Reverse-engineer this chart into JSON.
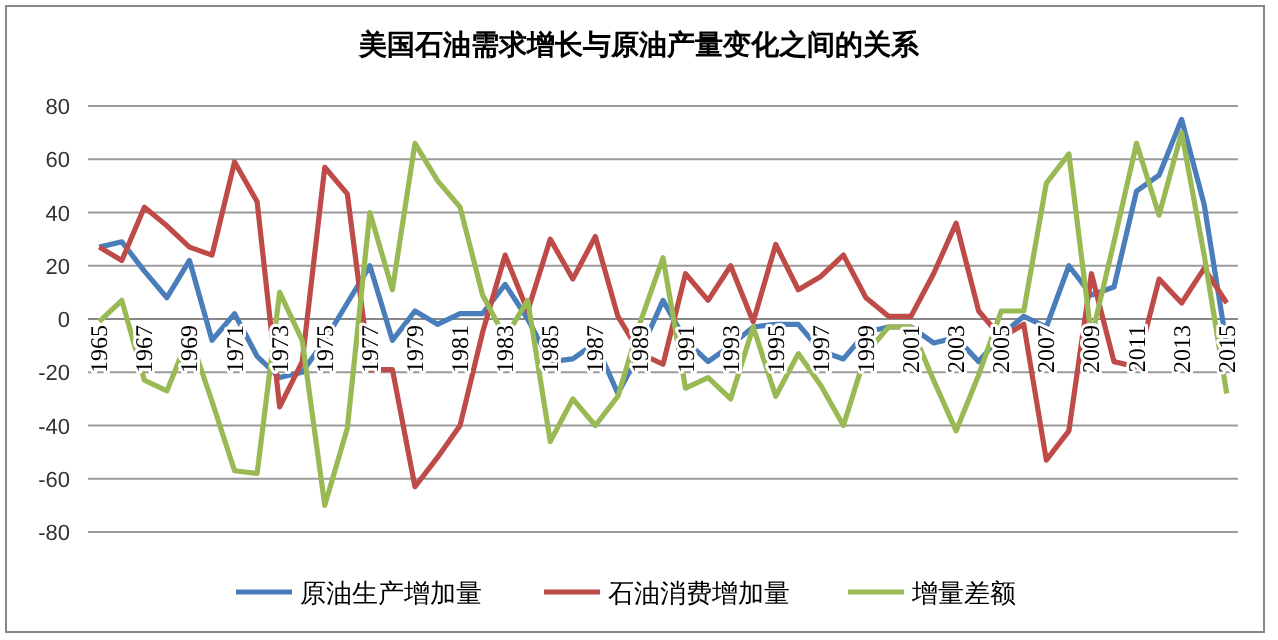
{
  "chart_data": {
    "type": "line",
    "title": "美国石油需求增长与原油产量变化之间的关系",
    "categories": [
      "1965",
      null,
      "1967",
      null,
      "1969",
      null,
      "1971",
      null,
      "1973",
      null,
      "1975",
      null,
      "1977",
      null,
      "1979",
      null,
      "1981",
      null,
      "1983",
      null,
      "1985",
      null,
      "1987",
      null,
      "1989",
      null,
      "1991",
      null,
      "1993",
      null,
      "1995",
      null,
      "1997",
      null,
      "1999",
      null,
      "2001",
      null,
      "2003",
      null,
      "2005",
      null,
      "2007",
      null,
      "2009",
      null,
      "2011",
      null,
      "2013",
      null,
      "2015"
    ],
    "series": [
      {
        "name": "原油生产增加量",
        "color": "#4a7ebb",
        "values": [
          27,
          29,
          18,
          8,
          22,
          -8,
          2,
          -14,
          -22,
          -20,
          -8,
          6,
          20,
          -8,
          3,
          -2,
          2,
          2,
          13,
          0,
          -16,
          -15,
          -9,
          -28,
          -12,
          7,
          -8,
          -16,
          -10,
          -3,
          -2,
          -2,
          -12,
          -15,
          -5,
          -3,
          -3,
          -9,
          -7,
          -16,
          -6,
          1,
          -3,
          20,
          9,
          12,
          48,
          54,
          75,
          43,
          -10
        ]
      },
      {
        "name": "石油消费增加量",
        "color": "#be4b48",
        "values": [
          27,
          22,
          42,
          35,
          27,
          24,
          59,
          44,
          -33,
          -16,
          57,
          47,
          -19,
          -19,
          -63,
          -52,
          -40,
          -5,
          24,
          3,
          30,
          15,
          31,
          1,
          -13,
          -17,
          17,
          7,
          20,
          -1,
          28,
          11,
          16,
          24,
          8,
          1,
          1,
          17,
          36,
          3,
          -7,
          -2,
          -53,
          -42,
          17,
          -16,
          -18,
          15,
          6,
          19,
          6
        ]
      },
      {
        "name": "增量差额",
        "color": "#98b954",
        "values": [
          -1,
          7,
          -23,
          -27,
          -6,
          -31,
          -57,
          -58,
          10,
          -8,
          -70,
          -41,
          40,
          11,
          66,
          52,
          42,
          9,
          -7,
          7,
          -46,
          -30,
          -40,
          -29,
          -1,
          23,
          -26,
          -22,
          -30,
          -3,
          -29,
          -13,
          -25,
          -40,
          -13,
          -3,
          -3,
          -23,
          -42,
          -21,
          3,
          3,
          51,
          62,
          -7,
          29,
          66,
          39,
          70,
          24,
          -28
        ]
      }
    ],
    "ylim": [
      -80,
      80
    ],
    "yticks": [
      -80,
      -60,
      -40,
      -20,
      0,
      20,
      40,
      60,
      80
    ],
    "grid": "y",
    "legend": "bottom"
  }
}
